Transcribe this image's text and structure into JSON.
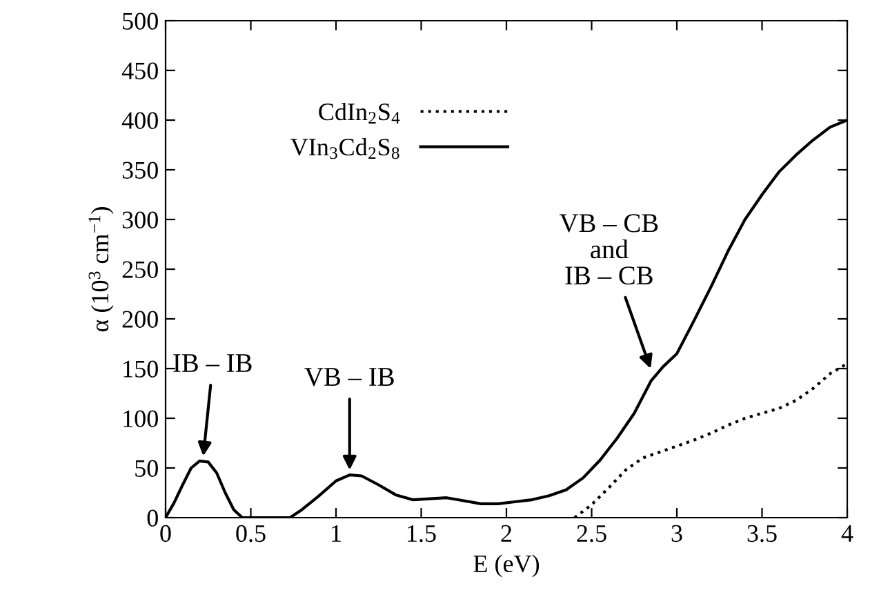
{
  "chart_data": {
    "type": "line",
    "xlabel": "E (eV)",
    "ylabel": "α (10$^{3}$ cm$^{−1}$)",
    "xlim": [
      0,
      4
    ],
    "ylim": [
      0,
      500
    ],
    "xticks": [
      0,
      0.5,
      1,
      1.5,
      2,
      2.5,
      3,
      3.5,
      4
    ],
    "yticks": [
      0,
      50,
      100,
      150,
      200,
      250,
      300,
      350,
      400,
      450,
      500
    ],
    "grid": false,
    "legend": "top left",
    "marker": "none",
    "series": [
      {
        "name": "CdIn$_{2}$S$_{4}$",
        "color": "#000000",
        "line_style": "dotted",
        "x": [
          2.4,
          2.5,
          2.6,
          2.7,
          2.8,
          2.9,
          3.0,
          3.1,
          3.2,
          3.3,
          3.4,
          3.5,
          3.6,
          3.7,
          3.8,
          3.9,
          4.0
        ],
        "values": [
          0,
          13,
          30,
          48,
          60,
          66,
          72,
          78,
          85,
          93,
          100,
          105,
          110,
          118,
          130,
          145,
          155
        ]
      },
      {
        "name": "VIn$_{3}$Cd$_{2}$S$_{8}$",
        "color": "#000000",
        "line_style": "solid",
        "x": [
          0,
          0.05,
          0.1,
          0.15,
          0.2,
          0.25,
          0.3,
          0.35,
          0.4,
          0.45,
          0.73,
          0.8,
          0.9,
          1.0,
          1.08,
          1.15,
          1.25,
          1.35,
          1.45,
          1.55,
          1.65,
          1.75,
          1.85,
          1.95,
          2.05,
          2.15,
          2.25,
          2.35,
          2.45,
          2.55,
          2.65,
          2.75,
          2.85,
          2.92,
          3.0,
          3.1,
          3.2,
          3.3,
          3.4,
          3.5,
          3.6,
          3.7,
          3.8,
          3.9,
          4.0
        ],
        "values": [
          0,
          15,
          33,
          50,
          57,
          56,
          45,
          25,
          8,
          0,
          0,
          8,
          22,
          37,
          43,
          42,
          33,
          23,
          18,
          19,
          20,
          17,
          14,
          14,
          16,
          18,
          22,
          28,
          40,
          58,
          80,
          105,
          138,
          152,
          165,
          198,
          232,
          268,
          300,
          325,
          348,
          365,
          380,
          393,
          400
        ]
      }
    ],
    "annotations": [
      {
        "text": "IB – IB",
        "x": 0.22,
        "y": 60
      },
      {
        "text": "VB – IB",
        "x": 1.08,
        "y": 46
      },
      {
        "text": "VB – CB\nand\nIB – CB",
        "x": 2.85,
        "y": 148
      }
    ]
  }
}
